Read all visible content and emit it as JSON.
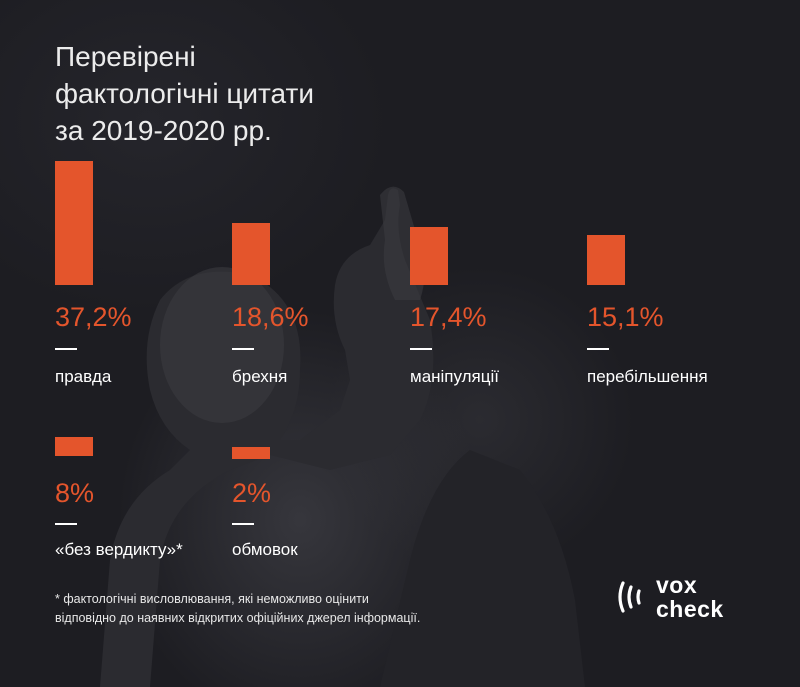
{
  "title": {
    "line1": "Перевірені",
    "line2": "фактологічні цитати",
    "line3": "за 2019-2020 рр."
  },
  "chart_data": {
    "type": "bar",
    "title": "Перевірені фактологічні цитати за 2019-2020 рр.",
    "categories": [
      "правда",
      "брехня",
      "маніпуляції",
      "перебільшення",
      "«без вердикту»*",
      "обмовок"
    ],
    "values": [
      37.2,
      18.6,
      17.4,
      15.1,
      8,
      2
    ],
    "value_labels": [
      "37,2%",
      "18,6%",
      "17,4%",
      "15,1%",
      "8%",
      "2%"
    ],
    "unit": "%",
    "bar_color": "#e4552c"
  },
  "footnote": {
    "line1": "* фактологічні висловлювання, які неможливо оцінити",
    "line2": "відповідно до наявних відкритих офіційних джерел інформації."
  },
  "logo": {
    "line1": "vox",
    "line2": "check",
    "icon": "voxcheck-signal-icon"
  },
  "colors": {
    "background": "#1d1d22",
    "accent": "#e4552c",
    "text": "#ffffff"
  }
}
